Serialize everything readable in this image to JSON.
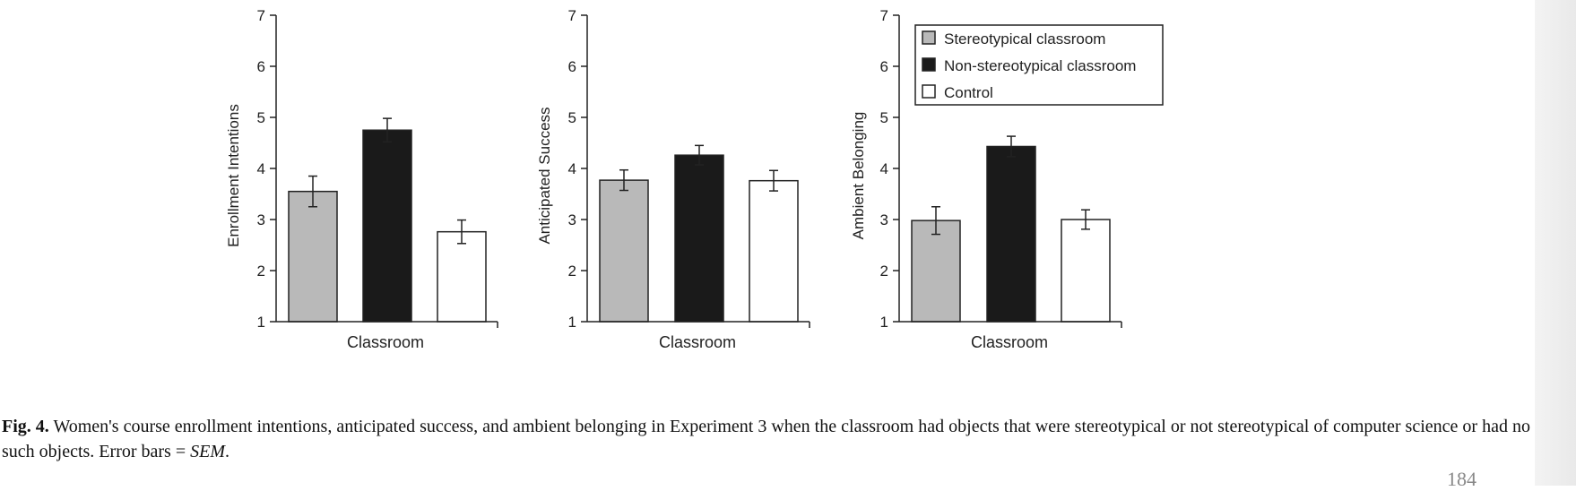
{
  "chart_data": [
    {
      "type": "bar",
      "ylabel": "Enrollment Intentions",
      "xlabel": "Classroom",
      "ylim": [
        1,
        7
      ],
      "yticks": [
        1,
        2,
        3,
        4,
        5,
        6,
        7
      ],
      "bars": [
        {
          "condition": "Stereotypical classroom",
          "value": 3.55,
          "sem": 0.3
        },
        {
          "condition": "Non-stereotypical classroom",
          "value": 4.75,
          "sem": 0.23
        },
        {
          "condition": "Control",
          "value": 2.76,
          "sem": 0.23
        }
      ]
    },
    {
      "type": "bar",
      "ylabel": "Anticipated Success",
      "xlabel": "Classroom",
      "ylim": [
        1,
        7
      ],
      "yticks": [
        1,
        2,
        3,
        4,
        5,
        6,
        7
      ],
      "bars": [
        {
          "condition": "Stereotypical classroom",
          "value": 3.77,
          "sem": 0.2
        },
        {
          "condition": "Non-stereotypical classroom",
          "value": 4.26,
          "sem": 0.19
        },
        {
          "condition": "Control",
          "value": 3.76,
          "sem": 0.2
        }
      ]
    },
    {
      "type": "bar",
      "ylabel": "Ambient Belonging",
      "xlabel": "Classroom",
      "ylim": [
        1,
        7
      ],
      "yticks": [
        1,
        2,
        3,
        4,
        5,
        6,
        7
      ],
      "bars": [
        {
          "condition": "Stereotypical classroom",
          "value": 2.98,
          "sem": 0.27
        },
        {
          "condition": "Non-stereotypical classroom",
          "value": 4.43,
          "sem": 0.2
        },
        {
          "condition": "Control",
          "value": 3.0,
          "sem": 0.19
        }
      ]
    }
  ],
  "legend": {
    "placement": "top-right of third panel",
    "entries": [
      {
        "label": "Stereotypical classroom",
        "color": "#b9b9b9"
      },
      {
        "label": "Non-stereotypical classroom",
        "color": "#1a1a1a"
      },
      {
        "label": "Control",
        "color": "#ffffff"
      }
    ]
  },
  "colors": {
    "stereotypical": "#b9b9b9",
    "non_stereotypical": "#1a1a1a",
    "control": "#ffffff",
    "axis": "#222222"
  },
  "caption": {
    "label": "Fig. 4.",
    "text": " Women's course enrollment intentions, anticipated success, and ambient belonging in Experiment 3 when the classroom had objects that were stereotypical or not stereotypical of computer science or had no such objects. Error bars = ",
    "sem": "SEM",
    "end": "."
  },
  "page_number": "184"
}
